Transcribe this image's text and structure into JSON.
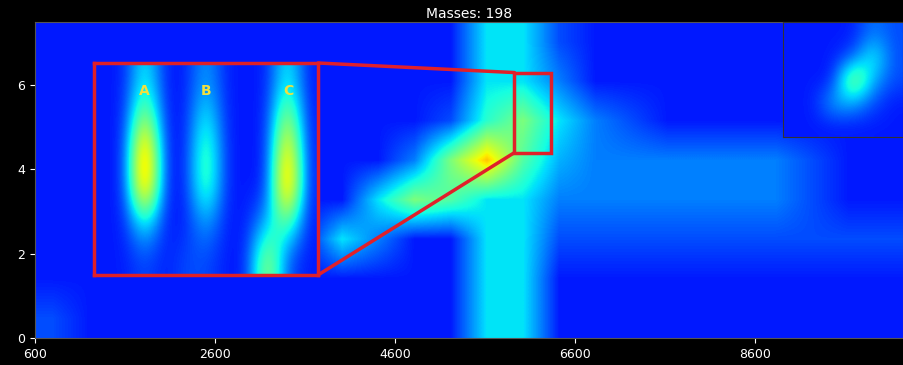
{
  "chart_data": {
    "type": "heatmap",
    "title": "Masses: 198",
    "color": "jet",
    "xlim": [
      600,
      10250
    ],
    "ylim": [
      0,
      7.5
    ],
    "xticks": [
      600,
      2600,
      4600,
      6600,
      8600
    ],
    "yticks": [
      0,
      2,
      4,
      6
    ],
    "cell_range": [
      0,
      10
    ],
    "cells": [
      [
        1.5,
        1.5,
        1.5,
        1.5,
        1.5,
        1.5,
        1.5,
        1.5,
        1.5,
        1.5,
        1.5,
        1.5,
        3.5,
        3.5,
        2,
        1.5,
        1.5,
        1.5,
        1.5,
        1.5,
        1.5,
        1.5,
        1.5,
        1.5
      ],
      [
        1.5,
        1.5,
        1.5,
        1.5,
        1.5,
        1.5,
        1.5,
        1.5,
        1.5,
        1.5,
        1.5,
        1.5,
        3.5,
        3.5,
        2.5,
        1.5,
        1.5,
        1.5,
        1.5,
        1.5,
        1.5,
        1.5,
        1.5,
        1.5
      ],
      [
        1.5,
        1.5,
        1.5,
        1.5,
        1.5,
        1.5,
        1.5,
        1.5,
        1.5,
        1.5,
        1.5,
        2,
        4,
        5,
        3.5,
        2.5,
        2,
        1.5,
        1.5,
        1.5,
        1.5,
        1.5,
        1.5,
        1.5
      ],
      [
        1.5,
        1.5,
        1.5,
        1.5,
        1.5,
        1.5,
        1.5,
        1.5,
        1.5,
        1.5,
        2.5,
        5,
        7,
        4.5,
        3,
        2.5,
        2.5,
        2.5,
        2.5,
        2.5,
        2.5,
        2,
        1.5,
        1.5
      ],
      [
        1.5,
        1.5,
        1.5,
        1.5,
        1.5,
        1.5,
        1.5,
        1.5,
        1.5,
        3.5,
        5,
        4.5,
        3.5,
        3.5,
        2.5,
        2.5,
        2.5,
        2.5,
        2.5,
        2.5,
        2.5,
        2,
        1.5,
        1.5
      ],
      [
        1.5,
        1.5,
        1.5,
        1.5,
        1.5,
        1.5,
        1.5,
        1.5,
        3.5,
        2.5,
        1.5,
        1.5,
        3.5,
        3.5,
        2,
        2,
        2,
        2,
        2,
        2,
        2,
        2,
        2,
        2
      ],
      [
        1.5,
        1.5,
        1.5,
        1.5,
        1.5,
        1.5,
        1.5,
        1.5,
        1.5,
        1.5,
        1.5,
        1.5,
        3.5,
        3.5,
        1.5,
        1.5,
        1.5,
        1.5,
        1.5,
        1.5,
        1.5,
        1.5,
        1.5,
        1.5
      ],
      [
        2,
        1.5,
        1.5,
        1.5,
        1.5,
        1.5,
        1.5,
        1.5,
        1.5,
        1.5,
        1.5,
        1.5,
        3.5,
        3.5,
        1.5,
        1.5,
        1.5,
        1.5,
        1.5,
        1.5,
        1.5,
        1.5,
        1.5,
        1.5
      ]
    ],
    "zoom": {
      "xlim": [
        5930,
        6340
      ],
      "ylim": [
        4.4,
        6.3
      ],
      "cells": [
        [
          1.5,
          1.5,
          4,
          1.5,
          1.5,
          3,
          1.5,
          1.5,
          1.5,
          4,
          1.5
        ],
        [
          1.5,
          1.5,
          6,
          1.5,
          1.5,
          4,
          1.5,
          1.5,
          1.5,
          6,
          1.5
        ],
        [
          1.5,
          1.5,
          9,
          1.5,
          1.5,
          5,
          1.5,
          1.5,
          1.5,
          8,
          1.5
        ],
        [
          1.5,
          1.5,
          9,
          1.5,
          1.5,
          5,
          1.5,
          1.5,
          1.5,
          9,
          1.5
        ],
        [
          1.5,
          1.5,
          4,
          1.5,
          1.5,
          3,
          1.5,
          1.5,
          3,
          5,
          1.5
        ],
        [
          1.5,
          1.5,
          2,
          1.5,
          2,
          2,
          1.5,
          1.5,
          6,
          2,
          1.5
        ]
      ],
      "labels": [
        {
          "text": "A",
          "x": 6023,
          "y": 6.05
        },
        {
          "text": "B",
          "x": 6135,
          "y": 6.05
        },
        {
          "text": "C",
          "x": 6285,
          "y": 6.05
        }
      ]
    },
    "overview": {
      "cells": [
        [
          1.5,
          1.5,
          1.5,
          1.5,
          2.5,
          2
        ],
        [
          1.5,
          1.5,
          1.5,
          2,
          4,
          2
        ],
        [
          1.5,
          1.5,
          1.5,
          6,
          3,
          2
        ],
        [
          1.5,
          1.5,
          3,
          3,
          2,
          1.5
        ],
        [
          1.5,
          1.5,
          1.5,
          1.5,
          1.5,
          1.5
        ]
      ]
    }
  }
}
